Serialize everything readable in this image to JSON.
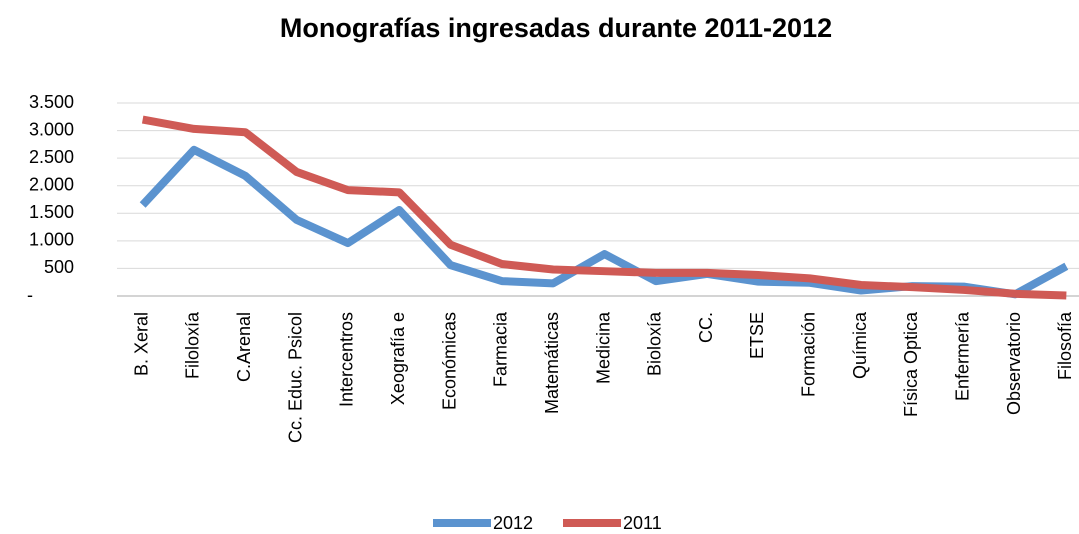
{
  "chart_data": {
    "type": "line",
    "title": "Monografías ingresadas durante 2011-2012",
    "categories": [
      "B. Xeral",
      "Filoloxía",
      "C.Arenal",
      "Cc. Educ. Psicol",
      "Intercentros",
      "Xeografía e",
      "Económicas",
      "Farmacia",
      "Matemáticas",
      "Medicina",
      "Bioloxía",
      "CC.",
      "ETSE",
      "Formación",
      "Química",
      "Física Optica",
      "Enfermería",
      "Observatorio",
      "Filosofía"
    ],
    "series": [
      {
        "name": "2012",
        "color": "#5b93cf",
        "values": [
          1650,
          2650,
          2180,
          1380,
          960,
          1560,
          560,
          270,
          230,
          760,
          270,
          400,
          260,
          240,
          100,
          180,
          170,
          30,
          540
        ]
      },
      {
        "name": "2011",
        "color": "#cf5a55",
        "values": [
          3200,
          3030,
          2970,
          2250,
          1920,
          1880,
          930,
          580,
          480,
          450,
          420,
          420,
          380,
          320,
          200,
          160,
          110,
          40,
          10
        ]
      }
    ],
    "ylim": [
      0,
      3500
    ],
    "yticks": [
      {
        "value": 0,
        "label": "-"
      },
      500,
      {
        "value": 1000,
        "label": "1.000"
      },
      {
        "value": 1500,
        "label": "1.500"
      },
      {
        "value": 2000,
        "label": "2.000"
      },
      {
        "value": 2500,
        "label": "2.500"
      },
      {
        "value": 3000,
        "label": "3.000"
      },
      {
        "value": 3500,
        "label": "3.500"
      }
    ],
    "grid": true,
    "legend": "bottom"
  }
}
